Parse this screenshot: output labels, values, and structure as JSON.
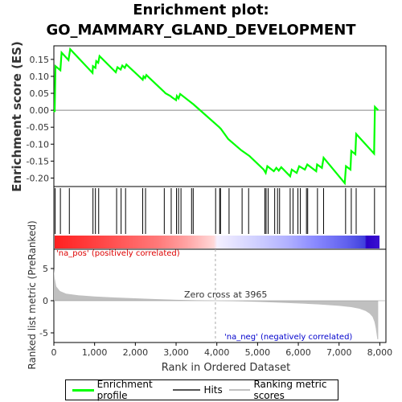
{
  "title_line1": "Enrichment plot:",
  "title_line2": "GO_MAMMARY_GLAND_DEVELOPMENT",
  "y_label_top": "Enrichment score (ES)",
  "y_label_bottom": "Ranked list metric (PreRanked)",
  "x_label": "Rank in Ordered Dataset",
  "zero_cross_label": "Zero cross at 3965",
  "pos_label": "'na_pos' (positively correlated)",
  "neg_label": "'na_neg' (negatively correlated)",
  "legend": {
    "enrichment": "Enrichment profile",
    "hits": "Hits",
    "ranking": "Ranking metric scores"
  },
  "colors": {
    "enrichment": "#00ff00",
    "hits": "#000000",
    "ranking": "#c0c0c0",
    "pos_text": "#dd0000",
    "neg_text": "#0000cc"
  },
  "chart_data": [
    {
      "type": "line",
      "panel": "enrichment",
      "ylim": [
        -0.225,
        0.19
      ],
      "xlim": [
        0,
        8150
      ],
      "yticks": [
        0.15,
        0.1,
        0.05,
        0.0,
        -0.05,
        -0.1,
        -0.15,
        -0.2
      ],
      "points": [
        [
          0,
          0.0
        ],
        [
          20,
          -0.005
        ],
        [
          40,
          0.13
        ],
        [
          160,
          0.118
        ],
        [
          190,
          0.17
        ],
        [
          360,
          0.148
        ],
        [
          400,
          0.18
        ],
        [
          950,
          0.11
        ],
        [
          960,
          0.13
        ],
        [
          1020,
          0.125
        ],
        [
          1040,
          0.145
        ],
        [
          1090,
          0.14
        ],
        [
          1120,
          0.16
        ],
        [
          1520,
          0.112
        ],
        [
          1560,
          0.127
        ],
        [
          1640,
          0.12
        ],
        [
          1680,
          0.132
        ],
        [
          1740,
          0.125
        ],
        [
          1780,
          0.135
        ],
        [
          2180,
          0.09
        ],
        [
          2200,
          0.1
        ],
        [
          2240,
          0.095
        ],
        [
          2270,
          0.104
        ],
        [
          2700,
          0.055
        ],
        [
          2740,
          0.05
        ],
        [
          2860,
          0.042
        ],
        [
          2900,
          0.038
        ],
        [
          3000,
          0.03
        ],
        [
          3020,
          0.042
        ],
        [
          3060,
          0.035
        ],
        [
          3100,
          0.048
        ],
        [
          3400,
          0.02
        ],
        [
          3420,
          0.018
        ],
        [
          4060,
          -0.05
        ],
        [
          4100,
          -0.055
        ],
        [
          4280,
          -0.085
        ],
        [
          4600,
          -0.118
        ],
        [
          4800,
          -0.135
        ],
        [
          5150,
          -0.175
        ],
        [
          5200,
          -0.185
        ],
        [
          5240,
          -0.165
        ],
        [
          5400,
          -0.18
        ],
        [
          5460,
          -0.17
        ],
        [
          5520,
          -0.178
        ],
        [
          5580,
          -0.168
        ],
        [
          5800,
          -0.195
        ],
        [
          5840,
          -0.175
        ],
        [
          5960,
          -0.185
        ],
        [
          6020,
          -0.165
        ],
        [
          6160,
          -0.175
        ],
        [
          6220,
          -0.16
        ],
        [
          6440,
          -0.18
        ],
        [
          6460,
          -0.16
        ],
        [
          6580,
          -0.17
        ],
        [
          6620,
          -0.14
        ],
        [
          7140,
          -0.215
        ],
        [
          7170,
          -0.165
        ],
        [
          7280,
          -0.175
        ],
        [
          7300,
          -0.12
        ],
        [
          7400,
          -0.13
        ],
        [
          7420,
          -0.07
        ],
        [
          7860,
          -0.128
        ],
        [
          7880,
          0.01
        ],
        [
          7960,
          0.0
        ]
      ]
    },
    {
      "type": "hits",
      "panel": "hits",
      "x": [
        30,
        160,
        380,
        960,
        1020,
        1100,
        1540,
        1650,
        1760,
        2180,
        2250,
        2710,
        2880,
        3010,
        3060,
        3120,
        3380,
        3420,
        3970,
        4070,
        4090,
        4300,
        4620,
        4780,
        5180,
        5210,
        5260,
        5420,
        5490,
        5540,
        5800,
        5870,
        5990,
        6050,
        6200,
        6230,
        6470,
        6620,
        7160,
        7300,
        7420,
        7870
      ]
    },
    {
      "type": "area",
      "panel": "ranking",
      "ylim": [
        -6.5,
        8
      ],
      "yticks": [
        5,
        0,
        -5
      ],
      "xticks": [
        0,
        1000,
        2000,
        3000,
        4000,
        5000,
        6000,
        7000,
        8000
      ],
      "zero_cross": 3965,
      "points": [
        [
          0,
          5.0
        ],
        [
          20,
          3.5
        ],
        [
          60,
          2.2
        ],
        [
          150,
          1.5
        ],
        [
          300,
          1.1
        ],
        [
          600,
          0.85
        ],
        [
          1000,
          0.65
        ],
        [
          1500,
          0.5
        ],
        [
          2000,
          0.38
        ],
        [
          2500,
          0.25
        ],
        [
          3000,
          0.14
        ],
        [
          3500,
          0.06
        ],
        [
          3965,
          0.0
        ],
        [
          4500,
          -0.08
        ],
        [
          5000,
          -0.18
        ],
        [
          5500,
          -0.3
        ],
        [
          6000,
          -0.42
        ],
        [
          6500,
          -0.58
        ],
        [
          7000,
          -0.8
        ],
        [
          7300,
          -1.0
        ],
        [
          7500,
          -1.25
        ],
        [
          7650,
          -1.6
        ],
        [
          7750,
          -2.0
        ],
        [
          7820,
          -2.5
        ],
        [
          7870,
          -3.3
        ],
        [
          7900,
          -4.2
        ],
        [
          7940,
          -6.0
        ],
        [
          7960,
          -6.0
        ]
      ]
    }
  ]
}
